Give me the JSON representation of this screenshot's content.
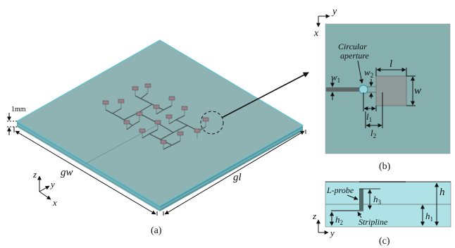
{
  "panel_a": {
    "caption": "(a)",
    "thickness_label": "1mm",
    "ground_width_label": "gw",
    "ground_length_label": "gl",
    "axes": {
      "z": "z",
      "y": "y",
      "x": "x"
    }
  },
  "panel_b": {
    "caption": "(b)",
    "axes": {
      "y": "y",
      "x": "x"
    },
    "aperture_label_line1": "Circular",
    "aperture_label_line2": "aperture",
    "patch_length": "l",
    "patch_width": "w",
    "feed_width_1": "w",
    "feed_width_1_sub": "1",
    "feed_width_2": "w",
    "feed_width_2_sub": "2",
    "len_1": "l",
    "len_1_sub": "1",
    "len_2": "l",
    "len_2_sub": "2"
  },
  "panel_c": {
    "caption": "(c)",
    "axes": {
      "z": "z",
      "y": "y"
    },
    "probe_label": "L-probe",
    "stripline_label": "Stripline",
    "h_total": "h",
    "h1": "h",
    "h1_sub": "1",
    "h2": "h",
    "h2_sub": "2",
    "h3": "h",
    "h3_sub": "3"
  },
  "colors": {
    "substrate": "#8fb3b3",
    "substrate_edge": "#5fc3d6",
    "panel_b_bg": "#85b0ae",
    "patch": "#8f9b99",
    "feed": "#5c6664",
    "panel_c_bg": "#aee2e6"
  }
}
